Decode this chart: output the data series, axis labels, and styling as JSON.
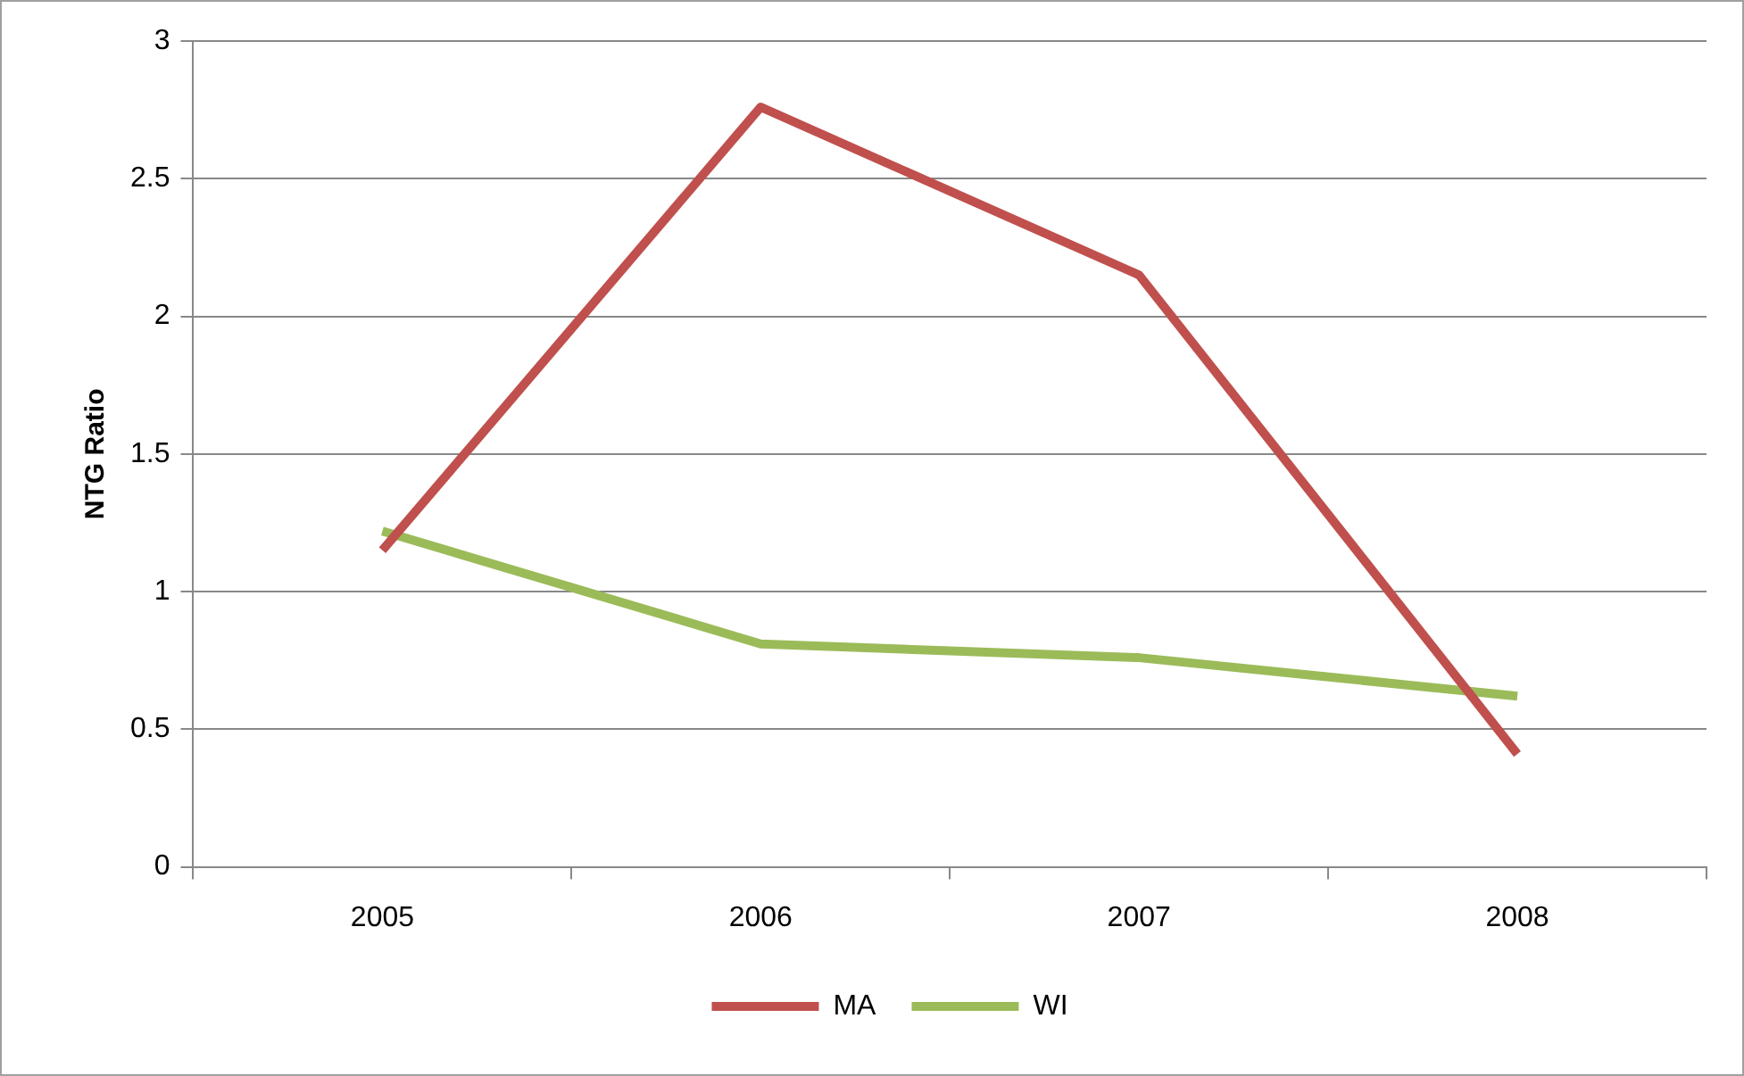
{
  "chart_data": {
    "type": "line",
    "ylabel": "NTG Ratio",
    "categories": [
      "2005",
      "2006",
      "2007",
      "2008"
    ],
    "series": [
      {
        "name": "MA",
        "color": "#c0504d",
        "values": [
          1.15,
          2.76,
          2.15,
          0.41
        ]
      },
      {
        "name": "WI",
        "color": "#9bbb59",
        "values": [
          1.22,
          0.81,
          0.76,
          0.62
        ]
      }
    ],
    "ylim": [
      0,
      3
    ],
    "yticks": [
      0,
      0.5,
      1,
      1.5,
      2,
      2.5,
      3
    ],
    "grid": "y",
    "legend": "bottom",
    "marker": "none",
    "line_style": "solid"
  }
}
